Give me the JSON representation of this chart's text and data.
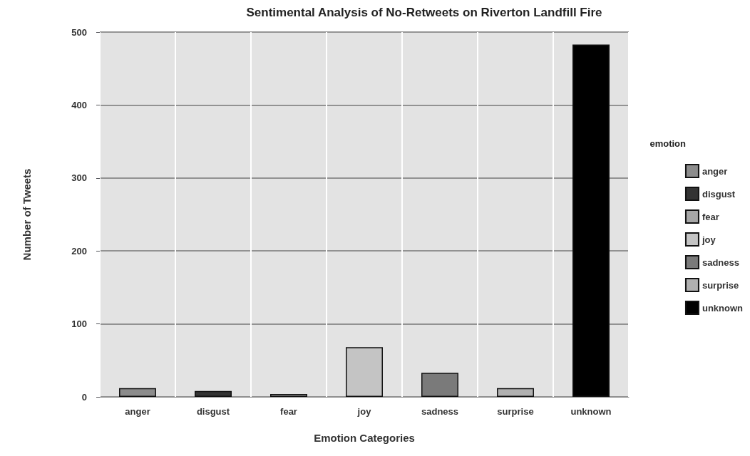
{
  "chart_data": {
    "type": "bar",
    "title": "Sentimental Analysis of No-Retweets on Riverton Landfill Fire",
    "xlabel": "Emotion Categories",
    "ylabel": "Number of Tweets",
    "legend_title": "emotion",
    "categories": [
      "anger",
      "disgust",
      "fear",
      "joy",
      "sadness",
      "surprise",
      "unknown"
    ],
    "series": [
      {
        "name": "anger",
        "color": "#8c8c8c",
        "values": [
          12,
          null,
          null,
          null,
          null,
          null,
          null
        ]
      },
      {
        "name": "disgust",
        "color": "#333333",
        "values": [
          null,
          8,
          null,
          null,
          null,
          null,
          null
        ]
      },
      {
        "name": "fear",
        "color": "#a6a6a6",
        "values": [
          null,
          null,
          4,
          null,
          null,
          null,
          null
        ]
      },
      {
        "name": "joy",
        "color": "#c4c4c4",
        "values": [
          null,
          null,
          null,
          68,
          null,
          null,
          null
        ]
      },
      {
        "name": "sadness",
        "color": "#7a7a7a",
        "values": [
          null,
          null,
          null,
          null,
          33,
          null,
          null
        ]
      },
      {
        "name": "surprise",
        "color": "#b0b0b0",
        "values": [
          null,
          null,
          null,
          null,
          null,
          12,
          null
        ]
      },
      {
        "name": "unknown",
        "color": "#000000",
        "values": [
          null,
          null,
          null,
          null,
          null,
          null,
          483
        ]
      }
    ],
    "ylim": [
      0,
      500
    ],
    "yticks": [
      0,
      100,
      200,
      300,
      400,
      500
    ],
    "grid": true,
    "legend": "right"
  }
}
